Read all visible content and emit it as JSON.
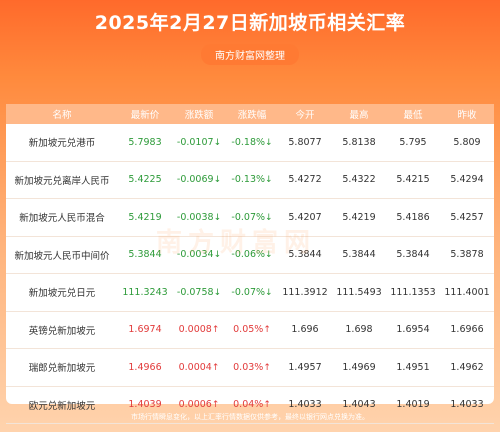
{
  "title": "2025年2月27日新加坡币相关汇率",
  "subtitle": "南方财富网整理",
  "watermark": "南方财富网",
  "footer": "市场行情瞬息变化，以上汇率行情数据仅供参考，最终以银行网点兑换为准。",
  "chart_data": {
    "type": "table",
    "columns": [
      "名称",
      "最新价",
      "涨跌额",
      "涨跌幅",
      "今开",
      "最高",
      "最低",
      "昨收"
    ],
    "rows": [
      {
        "name": "新加坡元兑港币",
        "latest": "5.7983",
        "change": "-0.0107",
        "pct": "-0.18%",
        "open": "5.8077",
        "high": "5.8138",
        "low": "5.795",
        "prev": "5.809",
        "dir": "down"
      },
      {
        "name": "新加坡元兑离岸人民币",
        "latest": "5.4225",
        "change": "-0.0069",
        "pct": "-0.13%",
        "open": "5.4272",
        "high": "5.4322",
        "low": "5.4215",
        "prev": "5.4294",
        "dir": "down"
      },
      {
        "name": "新加坡元人民币混合",
        "latest": "5.4219",
        "change": "-0.0038",
        "pct": "-0.07%",
        "open": "5.4207",
        "high": "5.4219",
        "low": "5.4186",
        "prev": "5.4257",
        "dir": "down"
      },
      {
        "name": "新加坡元人民币中间价",
        "latest": "5.3844",
        "change": "-0.0034",
        "pct": "-0.06%",
        "open": "5.3844",
        "high": "5.3844",
        "low": "5.3844",
        "prev": "5.3878",
        "dir": "down"
      },
      {
        "name": "新加坡元兑日元",
        "latest": "111.3243",
        "change": "-0.0758",
        "pct": "-0.07%",
        "open": "111.3912",
        "high": "111.5493",
        "low": "111.1353",
        "prev": "111.4001",
        "dir": "down"
      },
      {
        "name": "英镑兑新加坡元",
        "latest": "1.6974",
        "change": "0.0008",
        "pct": "0.05%",
        "open": "1.696",
        "high": "1.698",
        "low": "1.6954",
        "prev": "1.6966",
        "dir": "up"
      },
      {
        "name": "瑞郎兑新加坡元",
        "latest": "1.4966",
        "change": "0.0004",
        "pct": "0.03%",
        "open": "1.4957",
        "high": "1.4969",
        "low": "1.4951",
        "prev": "1.4962",
        "dir": "up"
      },
      {
        "name": "欧元兑新加坡元",
        "latest": "1.4039",
        "change": "0.0006",
        "pct": "0.04%",
        "open": "1.4033",
        "high": "1.4043",
        "low": "1.4019",
        "prev": "1.4033",
        "dir": "up"
      }
    ],
    "colors": {
      "up": "#e23b3b",
      "down": "#2e9b3a",
      "header": "#ffb889"
    },
    "arrows": {
      "up": "↑",
      "down": "↓"
    }
  }
}
